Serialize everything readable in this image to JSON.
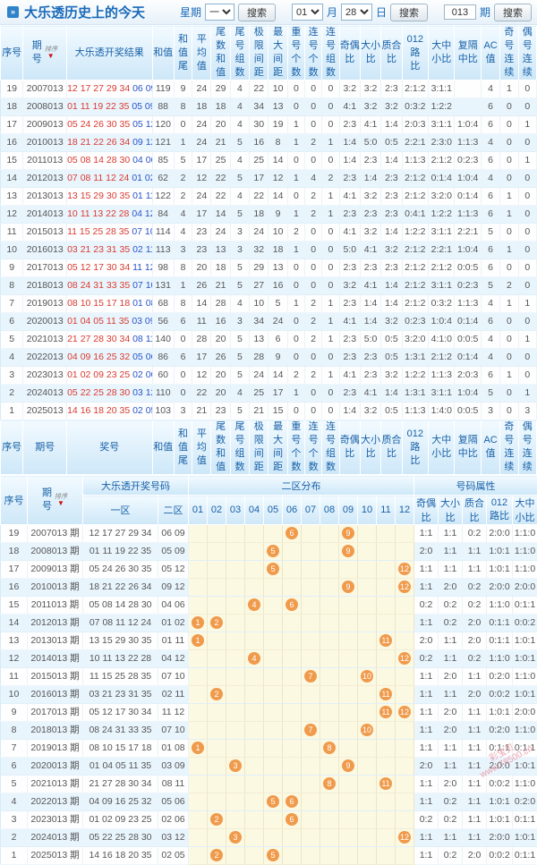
{
  "header": {
    "title": "大乐透历史上的今天",
    "bullet": "»",
    "week_label": "星期",
    "week_value": "一",
    "search_label": "搜索",
    "month_value": "01",
    "month_label": "月",
    "day_value": "28",
    "day_label": "日",
    "issue_value": "013",
    "issue_label": "期",
    "sort_label": "排序"
  },
  "colors": {
    "accent_blue": "#1a6ab8",
    "front_red": "#d93a30",
    "back_blue": "#2653c9",
    "circle_orange": "#f09a4c",
    "zone_yellow": "#fcf9e3",
    "stripe_blue": "#e9f5fd"
  },
  "table1": {
    "columns": [
      {
        "lines": [
          "序号"
        ]
      },
      {
        "lines": [
          "期",
          "号"
        ],
        "sort": true
      },
      {
        "lines": [
          "大乐透开奖结果"
        ]
      },
      {
        "lines": [
          "和值"
        ]
      },
      {
        "lines": [
          "和值",
          "尾"
        ]
      },
      {
        "lines": [
          "平均",
          "值"
        ]
      },
      {
        "lines": [
          "尾数",
          "和值"
        ]
      },
      {
        "lines": [
          "尾号",
          "组数"
        ]
      },
      {
        "lines": [
          "极限",
          "间距"
        ]
      },
      {
        "lines": [
          "最大",
          "间距"
        ]
      },
      {
        "lines": [
          "重号",
          "个数"
        ]
      },
      {
        "lines": [
          "连号",
          "个数"
        ]
      },
      {
        "lines": [
          "连号",
          "组数"
        ]
      },
      {
        "lines": [
          "奇偶",
          "比"
        ]
      },
      {
        "lines": [
          "大小",
          "比"
        ]
      },
      {
        "lines": [
          "质合",
          "比"
        ]
      },
      {
        "lines": [
          "012路",
          "比"
        ]
      },
      {
        "lines": [
          "大中",
          "小比"
        ]
      },
      {
        "lines": [
          "复隔",
          "中比"
        ]
      },
      {
        "lines": [
          "AC值"
        ]
      },
      {
        "lines": [
          "奇号",
          "连续"
        ]
      },
      {
        "lines": [
          "偶号",
          "连续"
        ]
      }
    ],
    "footer_columns": [
      {
        "lines": [
          "序号"
        ]
      },
      {
        "lines": [
          "期号"
        ]
      },
      {
        "lines": [
          "奖号"
        ]
      },
      {
        "lines": [
          "和值"
        ]
      },
      {
        "lines": [
          "和值",
          "尾"
        ]
      },
      {
        "lines": [
          "平均",
          "值"
        ]
      },
      {
        "lines": [
          "尾数",
          "和值"
        ]
      },
      {
        "lines": [
          "尾号",
          "组数"
        ]
      },
      {
        "lines": [
          "极限",
          "间距"
        ]
      },
      {
        "lines": [
          "最大",
          "间距"
        ]
      },
      {
        "lines": [
          "重号",
          "个数"
        ]
      },
      {
        "lines": [
          "连号",
          "个数"
        ]
      },
      {
        "lines": [
          "连号",
          "组数"
        ]
      },
      {
        "lines": [
          "奇偶",
          "比"
        ]
      },
      {
        "lines": [
          "大小",
          "比"
        ]
      },
      {
        "lines": [
          "质合",
          "比"
        ]
      },
      {
        "lines": [
          "012路",
          "比"
        ]
      },
      {
        "lines": [
          "大中",
          "小比"
        ]
      },
      {
        "lines": [
          "复隔",
          "中比"
        ]
      },
      {
        "lines": [
          "AC值"
        ]
      },
      {
        "lines": [
          "奇号",
          "连续"
        ]
      },
      {
        "lines": [
          "偶号",
          "连续"
        ]
      }
    ],
    "rows": [
      {
        "seq": "19",
        "issue": "2007013",
        "front": "12 17 27 29 34",
        "back": "06 09",
        "stats": [
          "119",
          "9",
          "24",
          "29",
          "4",
          "22",
          "10",
          "0",
          "0",
          "0",
          "3:2",
          "3:2",
          "2:3",
          "2:1:2",
          "3:1:1",
          "",
          "4",
          "1",
          "0"
        ]
      },
      {
        "seq": "18",
        "issue": "2008013",
        "front": "01 11 19 22 35",
        "back": "05 09",
        "stats": [
          "88",
          "8",
          "18",
          "18",
          "4",
          "34",
          "13",
          "0",
          "0",
          "0",
          "4:1",
          "3:2",
          "3:2",
          "0:3:2",
          "1:2:2",
          "",
          "6",
          "0",
          "0"
        ]
      },
      {
        "seq": "17",
        "issue": "2009013",
        "front": "05 24 26 30 35",
        "back": "05 12",
        "stats": [
          "120",
          "0",
          "24",
          "20",
          "4",
          "30",
          "19",
          "1",
          "0",
          "0",
          "2:3",
          "4:1",
          "1:4",
          "2:0:3",
          "3:1:1",
          "1:0:4",
          "6",
          "0",
          "1"
        ]
      },
      {
        "seq": "16",
        "issue": "2010013",
        "front": "18 21 22 26 34",
        "back": "09 12",
        "stats": [
          "121",
          "1",
          "24",
          "21",
          "5",
          "16",
          "8",
          "1",
          "2",
          "1",
          "1:4",
          "5:0",
          "0:5",
          "2:2:1",
          "2:3:0",
          "1:1:3",
          "4",
          "0",
          "0"
        ]
      },
      {
        "seq": "15",
        "issue": "2011013",
        "front": "05 08 14 28 30",
        "back": "04 06",
        "stats": [
          "85",
          "5",
          "17",
          "25",
          "4",
          "25",
          "14",
          "0",
          "0",
          "0",
          "1:4",
          "2:3",
          "1:4",
          "1:1:3",
          "2:1:2",
          "0:2:3",
          "6",
          "0",
          "1"
        ]
      },
      {
        "seq": "14",
        "issue": "2012013",
        "front": "07 08 11 12 24",
        "back": "01 02",
        "stats": [
          "62",
          "2",
          "12",
          "22",
          "5",
          "17",
          "12",
          "1",
          "4",
          "2",
          "2:3",
          "1:4",
          "2:3",
          "2:1:2",
          "0:1:4",
          "1:0:4",
          "4",
          "0",
          "0"
        ]
      },
      {
        "seq": "13",
        "issue": "2013013",
        "front": "13 15 29 30 35",
        "back": "01 11",
        "stats": [
          "122",
          "2",
          "24",
          "22",
          "4",
          "22",
          "14",
          "0",
          "2",
          "1",
          "4:1",
          "3:2",
          "2:3",
          "2:1:2",
          "3:2:0",
          "0:1:4",
          "6",
          "1",
          "0"
        ]
      },
      {
        "seq": "12",
        "issue": "2014013",
        "front": "10 11 13 22 28",
        "back": "04 12",
        "stats": [
          "84",
          "4",
          "17",
          "14",
          "5",
          "18",
          "9",
          "1",
          "2",
          "1",
          "2:3",
          "2:3",
          "2:3",
          "0:4:1",
          "1:2:2",
          "1:1:3",
          "6",
          "1",
          "0"
        ]
      },
      {
        "seq": "11",
        "issue": "2015013",
        "front": "11 15 25 28 35",
        "back": "07 10",
        "stats": [
          "114",
          "4",
          "23",
          "24",
          "3",
          "24",
          "10",
          "2",
          "0",
          "0",
          "4:1",
          "3:2",
          "1:4",
          "1:2:2",
          "3:1:1",
          "2:2:1",
          "5",
          "0",
          "0"
        ]
      },
      {
        "seq": "10",
        "issue": "2016013",
        "front": "03 21 23 31 35",
        "back": "02 11",
        "stats": [
          "113",
          "3",
          "23",
          "13",
          "3",
          "32",
          "18",
          "1",
          "0",
          "0",
          "5:0",
          "4:1",
          "3:2",
          "2:1:2",
          "2:2:1",
          "1:0:4",
          "6",
          "1",
          "0"
        ]
      },
      {
        "seq": "9",
        "issue": "2017013",
        "front": "05 12 17 30 34",
        "back": "11 12",
        "stats": [
          "98",
          "8",
          "20",
          "18",
          "5",
          "29",
          "13",
          "0",
          "0",
          "0",
          "2:3",
          "2:3",
          "2:3",
          "2:1:2",
          "2:1:2",
          "0:0:5",
          "6",
          "0",
          "0"
        ]
      },
      {
        "seq": "8",
        "issue": "2018013",
        "front": "08 24 31 33 35",
        "back": "07 10",
        "stats": [
          "131",
          "1",
          "26",
          "21",
          "5",
          "27",
          "16",
          "0",
          "0",
          "0",
          "3:2",
          "4:1",
          "1:4",
          "2:1:2",
          "3:1:1",
          "0:2:3",
          "5",
          "2",
          "0"
        ]
      },
      {
        "seq": "7",
        "issue": "2019013",
        "front": "08 10 15 17 18",
        "back": "01 08",
        "stats": [
          "68",
          "8",
          "14",
          "28",
          "4",
          "10",
          "5",
          "1",
          "2",
          "1",
          "2:3",
          "1:4",
          "1:4",
          "2:1:2",
          "0:3:2",
          "1:1:3",
          "4",
          "1",
          "1"
        ]
      },
      {
        "seq": "6",
        "issue": "2020013",
        "front": "01 04 05 11 35",
        "back": "03 09",
        "stats": [
          "56",
          "6",
          "11",
          "16",
          "3",
          "34",
          "24",
          "0",
          "2",
          "1",
          "4:1",
          "1:4",
          "3:2",
          "0:2:3",
          "1:0:4",
          "0:1:4",
          "6",
          "0",
          "0"
        ]
      },
      {
        "seq": "5",
        "issue": "2021013",
        "front": "21 27 28 30 34",
        "back": "08 11",
        "stats": [
          "140",
          "0",
          "28",
          "20",
          "5",
          "13",
          "6",
          "0",
          "2",
          "1",
          "2:3",
          "5:0",
          "0:5",
          "3:2:0",
          "4:1:0",
          "0:0:5",
          "4",
          "0",
          "1"
        ]
      },
      {
        "seq": "4",
        "issue": "2022013",
        "front": "04 09 16 25 32",
        "back": "05 06",
        "stats": [
          "86",
          "6",
          "17",
          "26",
          "5",
          "28",
          "9",
          "0",
          "0",
          "0",
          "2:3",
          "2:3",
          "0:5",
          "1:3:1",
          "2:1:2",
          "0:1:4",
          "4",
          "0",
          "0"
        ]
      },
      {
        "seq": "3",
        "issue": "2023013",
        "front": "01 02 09 23 25",
        "back": "02 06",
        "stats": [
          "60",
          "0",
          "12",
          "20",
          "5",
          "24",
          "14",
          "2",
          "2",
          "1",
          "4:1",
          "2:3",
          "3:2",
          "1:2:2",
          "1:1:3",
          "2:0:3",
          "6",
          "1",
          "0"
        ]
      },
      {
        "seq": "2",
        "issue": "2024013",
        "front": "05 22 25 28 30",
        "back": "03 12",
        "stats": [
          "110",
          "0",
          "22",
          "20",
          "4",
          "25",
          "17",
          "1",
          "0",
          "0",
          "2:3",
          "4:1",
          "1:4",
          "1:3:1",
          "3:1:1",
          "1:0:4",
          "5",
          "0",
          "1"
        ]
      },
      {
        "seq": "1",
        "issue": "2025013",
        "front": "14 16 18 20 35",
        "back": "02 05",
        "stats": [
          "103",
          "3",
          "21",
          "23",
          "5",
          "21",
          "15",
          "0",
          "0",
          "0",
          "1:4",
          "3:2",
          "0:5",
          "1:1:3",
          "1:4:0",
          "0:0:5",
          "3",
          "0",
          "3"
        ]
      }
    ]
  },
  "table2": {
    "labels": {
      "seq": "序号",
      "issue_l1": "期",
      "issue_l2": "号",
      "group_numbers": "大乐透开奖号码",
      "zone1": "一区",
      "zone2": "二区",
      "group_zone": "二区分布",
      "group_attr": "号码属性",
      "sort_label": "排序"
    },
    "zone_cols": [
      "01",
      "02",
      "03",
      "04",
      "05",
      "06",
      "07",
      "08",
      "09",
      "10",
      "11",
      "12"
    ],
    "attr_cols": [
      "奇偶比",
      "大小比",
      "质合比",
      "012路比",
      "大中小比"
    ],
    "rows": [
      {
        "seq": "19",
        "issue": "2007013 期",
        "front": "12 17 27 29 34",
        "back": "06 09",
        "marks": [
          6,
          9
        ],
        "attrs": [
          "1:1",
          "1:1",
          "0:2",
          "2:0:0",
          "1:1:0"
        ]
      },
      {
        "seq": "18",
        "issue": "2008013 期",
        "front": "01 11 19 22 35",
        "back": "05 09",
        "marks": [
          5,
          9
        ],
        "attrs": [
          "2:0",
          "1:1",
          "1:1",
          "1:0:1",
          "1:1:0"
        ]
      },
      {
        "seq": "17",
        "issue": "2009013 期",
        "front": "05 24 26 30 35",
        "back": "05 12",
        "marks": [
          5,
          12
        ],
        "attrs": [
          "1:1",
          "1:1",
          "1:1",
          "1:0:1",
          "1:1:0"
        ]
      },
      {
        "seq": "16",
        "issue": "2010013 期",
        "front": "18 21 22 26 34",
        "back": "09 12",
        "marks": [
          9,
          12
        ],
        "attrs": [
          "1:1",
          "2:0",
          "0:2",
          "2:0:0",
          "2:0:0"
        ]
      },
      {
        "seq": "15",
        "issue": "2011013 期",
        "front": "05 08 14 28 30",
        "back": "04 06",
        "marks": [
          4,
          6
        ],
        "attrs": [
          "0:2",
          "0:2",
          "0:2",
          "1:1:0",
          "0:1:1"
        ]
      },
      {
        "seq": "14",
        "issue": "2012013 期",
        "front": "07 08 11 12 24",
        "back": "01 02",
        "marks": [
          1,
          2
        ],
        "attrs": [
          "1:1",
          "0:2",
          "2:0",
          "0:1:1",
          "0:0:2"
        ]
      },
      {
        "seq": "13",
        "issue": "2013013 期",
        "front": "13 15 29 30 35",
        "back": "01 11",
        "marks": [
          1,
          11
        ],
        "attrs": [
          "2:0",
          "1:1",
          "2:0",
          "0:1:1",
          "1:0:1"
        ]
      },
      {
        "seq": "12",
        "issue": "2014013 期",
        "front": "10 11 13 22 28",
        "back": "04 12",
        "marks": [
          4,
          12
        ],
        "attrs": [
          "0:2",
          "1:1",
          "0:2",
          "1:1:0",
          "1:0:1"
        ]
      },
      {
        "seq": "11",
        "issue": "2015013 期",
        "front": "11 15 25 28 35",
        "back": "07 10",
        "marks": [
          7,
          10
        ],
        "attrs": [
          "1:1",
          "2:0",
          "1:1",
          "0:2:0",
          "1:1:0"
        ]
      },
      {
        "seq": "10",
        "issue": "2016013 期",
        "front": "03 21 23 31 35",
        "back": "02 11",
        "marks": [
          2,
          11
        ],
        "attrs": [
          "1:1",
          "1:1",
          "2:0",
          "0:0:2",
          "1:0:1"
        ]
      },
      {
        "seq": "9",
        "issue": "2017013 期",
        "front": "05 12 17 30 34",
        "back": "11 12",
        "marks": [
          11,
          12
        ],
        "attrs": [
          "1:1",
          "2:0",
          "1:1",
          "1:0:1",
          "2:0:0"
        ]
      },
      {
        "seq": "8",
        "issue": "2018013 期",
        "front": "08 24 31 33 35",
        "back": "07 10",
        "marks": [
          7,
          10
        ],
        "attrs": [
          "1:1",
          "2:0",
          "1:1",
          "0:2:0",
          "1:1:0"
        ]
      },
      {
        "seq": "7",
        "issue": "2019013 期",
        "front": "08 10 15 17 18",
        "back": "01 08",
        "marks": [
          1,
          8
        ],
        "attrs": [
          "1:1",
          "1:1",
          "1:1",
          "0:1:1",
          "0:1:1"
        ]
      },
      {
        "seq": "6",
        "issue": "2020013 期",
        "front": "01 04 05 11 35",
        "back": "03 09",
        "marks": [
          3,
          9
        ],
        "attrs": [
          "2:0",
          "1:1",
          "1:1",
          "2:0:0",
          "1:0:1"
        ]
      },
      {
        "seq": "5",
        "issue": "2021013 期",
        "front": "21 27 28 30 34",
        "back": "08 11",
        "marks": [
          8,
          11
        ],
        "attrs": [
          "1:1",
          "2:0",
          "1:1",
          "0:0:2",
          "1:1:0"
        ]
      },
      {
        "seq": "4",
        "issue": "2022013 期",
        "front": "04 09 16 25 32",
        "back": "05 06",
        "marks": [
          5,
          6
        ],
        "attrs": [
          "1:1",
          "0:2",
          "1:1",
          "1:0:1",
          "0:2:0"
        ]
      },
      {
        "seq": "3",
        "issue": "2023013 期",
        "front": "01 02 09 23 25",
        "back": "02 06",
        "marks": [
          2,
          6
        ],
        "attrs": [
          "0:2",
          "0:2",
          "1:1",
          "1:0:1",
          "0:1:1"
        ]
      },
      {
        "seq": "2",
        "issue": "2024013 期",
        "front": "05 22 25 28 30",
        "back": "03 12",
        "marks": [
          3,
          12
        ],
        "attrs": [
          "1:1",
          "1:1",
          "1:1",
          "2:0:0",
          "1:0:1"
        ]
      },
      {
        "seq": "1",
        "issue": "2025013 期",
        "front": "14 16 18 20 35",
        "back": "02 05",
        "marks": [
          2,
          5
        ],
        "attrs": [
          "1:1",
          "0:2",
          "2:0",
          "0:0:2",
          "0:1:1"
        ]
      }
    ]
  },
  "watermark": {
    "line1": "彩宝贝",
    "line2": "www.78500.cn"
  }
}
